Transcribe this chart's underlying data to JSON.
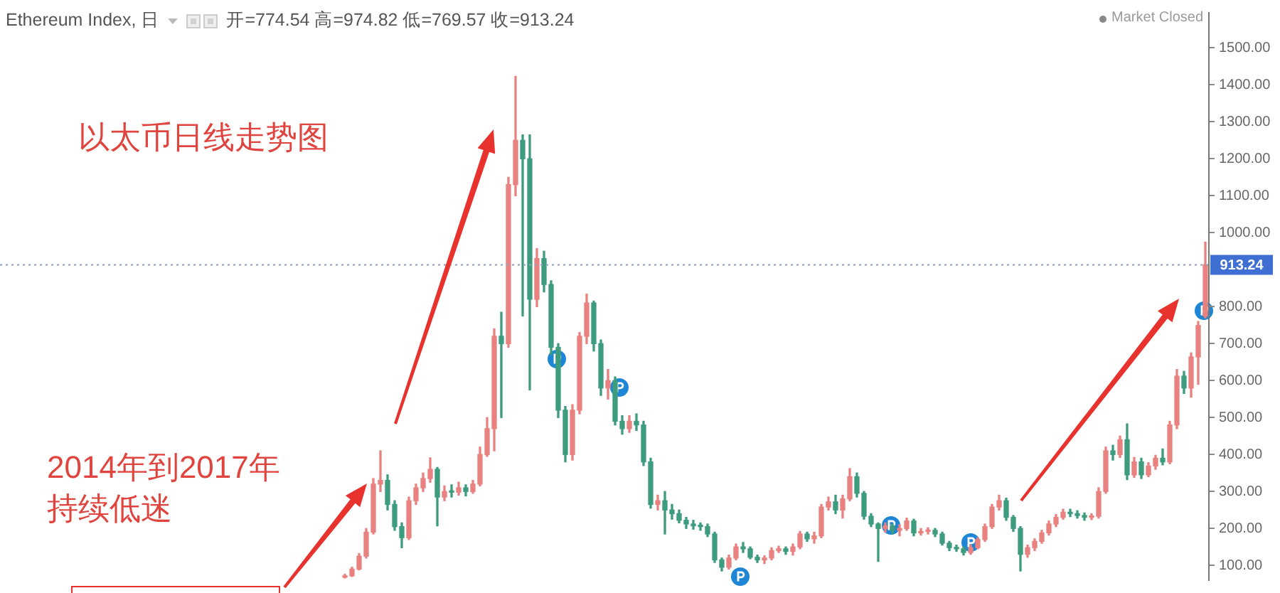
{
  "chart_data": {
    "type": "candlestick",
    "title": "Ethereum Index, 日",
    "subtitle": "开=774.54 高=974.82 低=769.57 收=913.24",
    "annotations": [
      "以太币日线走势图",
      "2014年到2017年",
      "持续低迷",
      "Market Closed"
    ],
    "categories": [
      null,
      null,
      null,
      null,
      null,
      null,
      null,
      null,
      null,
      null,
      null,
      null,
      null,
      null,
      null,
      null,
      null,
      null,
      null,
      null,
      null,
      null,
      null,
      null,
      null,
      null,
      null,
      null,
      null,
      null,
      null,
      null,
      null,
      null,
      null,
      null,
      null,
      null,
      null,
      null,
      null,
      null,
      null,
      null,
      null,
      null,
      null,
      null,
      null,
      null,
      null,
      null,
      null,
      null,
      null,
      null,
      null,
      null,
      null,
      null,
      null,
      null,
      null,
      null,
      null,
      null,
      null,
      null,
      null,
      null,
      null,
      null,
      null,
      null,
      null,
      null,
      null,
      null,
      null,
      null,
      null,
      null,
      null,
      null,
      null,
      null,
      null,
      null,
      null,
      null,
      null,
      null,
      null,
      null,
      null,
      null,
      null,
      null,
      null,
      null,
      null,
      null,
      null,
      null,
      null,
      null,
      null,
      null,
      null,
      null,
      null,
      null,
      null,
      null,
      null,
      null,
      null,
      null,
      null,
      null,
      null,
      null,
      null,
      null,
      null,
      null,
      null,
      null,
      null,
      null,
      null,
      null,
      null,
      null,
      null,
      null,
      null,
      null,
      null,
      null,
      null,
      null,
      null,
      null,
      null,
      null,
      null,
      null,
      null,
      null,
      null,
      null,
      null,
      null,
      null,
      null,
      null,
      null,
      null,
      null,
      null,
      null,
      null,
      null,
      null,
      null,
      null,
      null,
      null,
      null
    ],
    "ohlc": [
      null,
      null,
      null,
      null,
      null,
      null,
      null,
      null,
      null,
      null,
      null,
      null,
      null,
      null,
      null,
      null,
      null,
      null,
      null,
      null,
      null,
      null,
      null,
      null,
      null,
      null,
      null,
      null,
      null,
      null,
      null,
      null,
      null,
      null,
      null,
      null,
      null,
      null,
      null,
      null,
      null,
      null,
      null,
      null,
      null,
      null,
      null,
      null,
      [
        68,
        76,
        66,
        72
      ],
      [
        72,
        95,
        70,
        90
      ],
      [
        90,
        132,
        88,
        125
      ],
      [
        125,
        200,
        120,
        190
      ],
      [
        190,
        335,
        185,
        320
      ],
      [
        320,
        410,
        300,
        330
      ],
      [
        330,
        345,
        250,
        265
      ],
      [
        265,
        275,
        195,
        205
      ],
      [
        205,
        215,
        148,
        175
      ],
      [
        175,
        285,
        170,
        275
      ],
      [
        275,
        320,
        265,
        310
      ],
      [
        310,
        350,
        300,
        335
      ],
      [
        335,
        391,
        325,
        360
      ],
      [
        360,
        365,
        207,
        285
      ],
      [
        285,
        315,
        275,
        300
      ],
      [
        300,
        318,
        285,
        298
      ],
      [
        298,
        325,
        290,
        310
      ],
      [
        310,
        318,
        288,
        300
      ],
      [
        300,
        330,
        295,
        320
      ],
      [
        320,
        420,
        315,
        400
      ],
      [
        400,
        500,
        395,
        470
      ],
      [
        470,
        740,
        410,
        720
      ],
      [
        720,
        785,
        500,
        700
      ],
      [
        700,
        1150,
        690,
        1130
      ],
      [
        1130,
        1423,
        1100,
        1250
      ],
      [
        1250,
        1265,
        775,
        1200
      ],
      [
        1200,
        1265,
        575,
        820
      ],
      [
        820,
        957,
        800,
        930
      ],
      [
        930,
        950,
        840,
        860
      ],
      [
        860,
        870,
        670,
        690
      ],
      [
        690,
        700,
        500,
        520
      ],
      [
        520,
        530,
        380,
        400
      ],
      [
        400,
        535,
        385,
        520
      ],
      [
        520,
        730,
        510,
        720
      ],
      [
        720,
        834,
        700,
        810
      ],
      [
        810,
        815,
        680,
        700
      ],
      [
        700,
        710,
        560,
        580
      ],
      [
        580,
        630,
        550,
        600
      ],
      [
        600,
        610,
        480,
        490
      ],
      [
        490,
        505,
        455,
        470
      ],
      [
        470,
        505,
        460,
        490
      ],
      [
        490,
        510,
        465,
        480
      ],
      [
        480,
        490,
        370,
        380
      ],
      [
        380,
        390,
        255,
        265
      ],
      [
        265,
        290,
        250,
        275
      ],
      [
        275,
        300,
        185,
        250
      ],
      [
        250,
        265,
        225,
        240
      ],
      [
        240,
        250,
        215,
        222
      ],
      [
        222,
        230,
        200,
        212
      ],
      [
        212,
        222,
        198,
        207
      ],
      [
        207,
        215,
        195,
        205
      ],
      [
        205,
        212,
        178,
        185
      ],
      [
        185,
        190,
        108,
        115
      ],
      [
        115,
        120,
        85,
        95
      ],
      [
        95,
        128,
        90,
        120
      ],
      [
        120,
        158,
        115,
        150
      ],
      [
        150,
        162,
        135,
        145
      ],
      [
        145,
        150,
        118,
        122
      ],
      [
        122,
        128,
        108,
        115
      ],
      [
        115,
        126,
        105,
        120
      ],
      [
        120,
        148,
        115,
        140
      ],
      [
        140,
        152,
        135,
        145
      ],
      [
        145,
        150,
        130,
        138
      ],
      [
        138,
        158,
        128,
        150
      ],
      [
        150,
        192,
        145,
        185
      ],
      [
        185,
        190,
        165,
        172
      ],
      [
        172,
        190,
        160,
        180
      ],
      [
        180,
        265,
        175,
        258
      ],
      [
        258,
        285,
        250,
        272
      ],
      [
        272,
        290,
        240,
        250
      ],
      [
        250,
        290,
        228,
        280
      ],
      [
        280,
        362,
        275,
        340
      ],
      [
        340,
        350,
        285,
        295
      ],
      [
        295,
        300,
        225,
        233
      ],
      [
        233,
        240,
        205,
        212
      ],
      [
        212,
        215,
        111,
        200
      ],
      [
        200,
        215,
        190,
        207
      ],
      [
        207,
        212,
        185,
        195
      ],
      [
        195,
        210,
        180,
        200
      ],
      [
        200,
        228,
        195,
        220
      ],
      [
        220,
        225,
        180,
        188
      ],
      [
        188,
        200,
        182,
        192
      ],
      [
        192,
        202,
        185,
        195
      ],
      [
        195,
        200,
        178,
        185
      ],
      [
        185,
        190,
        155,
        160
      ],
      [
        160,
        165,
        140,
        148
      ],
      [
        148,
        155,
        138,
        145
      ],
      [
        145,
        150,
        128,
        135
      ],
      [
        135,
        155,
        130,
        148
      ],
      [
        148,
        175,
        145,
        170
      ],
      [
        170,
        212,
        165,
        205
      ],
      [
        205,
        265,
        200,
        258
      ],
      [
        258,
        290,
        250,
        275
      ],
      [
        275,
        282,
        222,
        230
      ],
      [
        230,
        235,
        192,
        200
      ],
      [
        200,
        205,
        85,
        130
      ],
      [
        130,
        155,
        122,
        148
      ],
      [
        148,
        172,
        140,
        165
      ],
      [
        165,
        195,
        160,
        188
      ],
      [
        188,
        220,
        182,
        212
      ],
      [
        212,
        238,
        205,
        230
      ],
      [
        230,
        252,
        225,
        244
      ],
      [
        244,
        252,
        232,
        240
      ],
      [
        240,
        248,
        228,
        235
      ],
      [
        235,
        242,
        222,
        230
      ],
      [
        230,
        240,
        224,
        233
      ],
      [
        233,
        310,
        228,
        300
      ],
      [
        300,
        420,
        295,
        410
      ],
      [
        410,
        425,
        385,
        400
      ],
      [
        400,
        450,
        392,
        440
      ],
      [
        440,
        483,
        332,
        345
      ],
      [
        345,
        392,
        338,
        380
      ],
      [
        380,
        390,
        335,
        345
      ],
      [
        345,
        378,
        340,
        369
      ],
      [
        369,
        398,
        360,
        390
      ],
      [
        390,
        415,
        372,
        380
      ],
      [
        380,
        490,
        375,
        480
      ],
      [
        480,
        630,
        470,
        612
      ],
      [
        612,
        625,
        565,
        580
      ],
      [
        580,
        675,
        555,
        664
      ],
      [
        664,
        760,
        590,
        749
      ],
      [
        774.54,
        974.82,
        769.57,
        913.24
      ]
    ],
    "colors": [
      null,
      null,
      null,
      null,
      null,
      null,
      null,
      null,
      null,
      null,
      null,
      null,
      null,
      null,
      null,
      null,
      null,
      null,
      null,
      null,
      null,
      null,
      null,
      null,
      null,
      null,
      null,
      null,
      null,
      null,
      null,
      null,
      null,
      null,
      null,
      null,
      null,
      null,
      null,
      null,
      null,
      null,
      null,
      null,
      null,
      null,
      null,
      null,
      "#e8817f",
      "#e8817f",
      "#e8817f",
      "#e8817f",
      "#e8817f",
      "#e8817f",
      "#3e9c7e",
      "#3e9c7e",
      "#3e9c7e",
      "#e8817f",
      "#e8817f",
      "#e8817f",
      "#e8817f",
      "#3e9c7e",
      "#e8817f",
      "#3e9c7e",
      "#e8817f",
      "#3e9c7e",
      "#e8817f",
      "#e8817f",
      "#e8817f",
      "#e8817f",
      "#3e9c7e",
      "#e8817f",
      "#e8817f",
      "#3e9c7e",
      "#3e9c7e",
      "#e8817f",
      "#3e9c7e",
      "#3e9c7e",
      "#3e9c7e",
      "#3e9c7e",
      "#e8817f",
      "#e8817f",
      "#e8817f",
      "#3e9c7e",
      "#3e9c7e",
      "#e8817f",
      "#3e9c7e",
      "#3e9c7e",
      "#e8817f",
      "#3e9c7e",
      "#3e9c7e",
      "#3e9c7e",
      "#e8817f",
      "#3e9c7e",
      "#3e9c7e",
      "#3e9c7e",
      "#3e9c7e",
      "#3e9c7e",
      "#3e9c7e",
      "#3e9c7e",
      "#3e9c7e",
      "#3e9c7e",
      "#e8817f",
      "#e8817f",
      "#3e9c7e",
      "#3e9c7e",
      "#3e9c7e",
      "#e8817f",
      "#e8817f",
      "#e8817f",
      "#3e9c7e",
      "#e8817f",
      "#e8817f",
      "#3e9c7e",
      "#e8817f",
      "#e8817f",
      "#e8817f",
      "#3e9c7e",
      "#e8817f",
      "#e8817f",
      "#3e9c7e",
      "#3e9c7e",
      "#3e9c7e",
      "#3e9c7e",
      "#e8817f",
      "#3e9c7e",
      "#e8817f",
      "#e8817f",
      "#3e9c7e",
      "#e8817f",
      "#e8817f",
      "#3e9c7e",
      "#3e9c7e",
      "#3e9c7e",
      "#3e9c7e",
      "#3e9c7e",
      "#e8817f",
      "#e8817f",
      "#e8817f",
      "#e8817f",
      "#e8817f",
      "#3e9c7e",
      "#3e9c7e",
      "#3e9c7e",
      "#e8817f",
      "#e8817f",
      "#e8817f",
      "#e8817f",
      "#e8817f",
      "#e8817f",
      "#3e9c7e",
      "#3e9c7e",
      "#3e9c7e",
      "#e8817f",
      "#e8817f",
      "#e8817f",
      "#3e9c7e",
      "#e8817f",
      "#3e9c7e",
      "#e8817f",
      "#3e9c7e",
      "#e8817f",
      "#e8817f",
      "#3e9c7e",
      "#e8817f",
      "#e8817f",
      "#3e9c7e",
      "#e8817f",
      "#e8817f",
      "#e8817f"
    ],
    "ylim": [
      60,
      1595
    ],
    "yticks": [
      {
        "value": 100,
        "label": "100.00"
      },
      {
        "value": 200,
        "label": "200.00"
      },
      {
        "value": 300,
        "label": "300.00"
      },
      {
        "value": 400,
        "label": "400.00"
      },
      {
        "value": 500,
        "label": "500.00"
      },
      {
        "value": 600,
        "label": "600.00"
      },
      {
        "value": 700,
        "label": "700.00"
      },
      {
        "value": 800,
        "label": "800.00"
      },
      {
        "value": 1000,
        "label": "1000.00"
      },
      {
        "value": 1100,
        "label": "1100.00"
      },
      {
        "value": 1200,
        "label": "1200.00"
      },
      {
        "value": 1300,
        "label": "1300.00"
      },
      {
        "value": 1400,
        "label": "1400.00"
      },
      {
        "value": 1500,
        "label": "1500.00"
      }
    ],
    "ref_lines": [
      {
        "axis": "y",
        "value": 913.24,
        "label": "913.24",
        "color": "#8fa3bf",
        "line_style": "dotted"
      }
    ],
    "tick_labels": "y"
  }
}
